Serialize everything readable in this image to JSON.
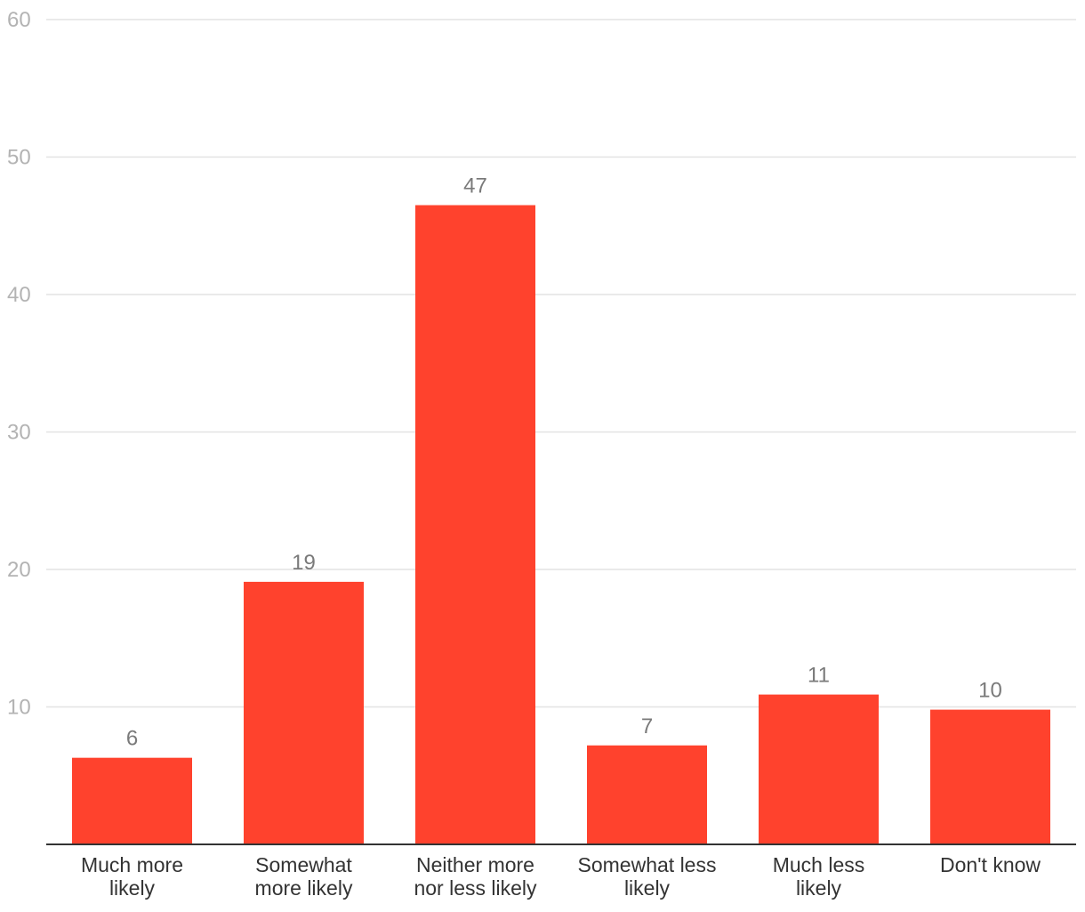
{
  "chart_data": {
    "type": "bar",
    "categories": [
      [
        "Much more",
        "likely"
      ],
      [
        "Somewhat",
        "more likely"
      ],
      [
        "Neither more",
        "nor less likely"
      ],
      [
        "Somewhat less",
        "likely"
      ],
      [
        "Much less",
        "likely"
      ],
      [
        "Don't know"
      ]
    ],
    "values": [
      6.3,
      19.1,
      46.5,
      7.2,
      10.9,
      9.8
    ],
    "data_labels": [
      "6",
      "19",
      "47",
      "7",
      "11",
      "10"
    ],
    "ylim": [
      0,
      60
    ],
    "yticks": [
      10,
      20,
      30,
      40,
      50,
      60
    ],
    "grid": true,
    "colors": {
      "bar": "#ff422d",
      "grid": "#e3e3e3",
      "axis": "#333333",
      "tick_text": "#b3b3b3",
      "label_text": "#7a7a7a"
    }
  }
}
